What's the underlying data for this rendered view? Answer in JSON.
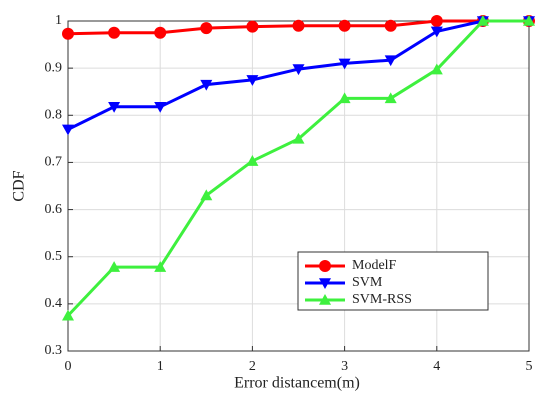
{
  "chart_data": {
    "type": "line",
    "xlabel": "Error distancem(m)",
    "ylabel": "CDF",
    "x": [
      0,
      0.5,
      1,
      1.5,
      2,
      2.5,
      3,
      3.5,
      4,
      4.5,
      5
    ],
    "series": [
      {
        "name": "ModelF",
        "color": "#ff0000",
        "marker": "circle",
        "values": [
          0.973,
          0.975,
          0.975,
          0.985,
          0.988,
          0.99,
          0.99,
          0.99,
          1,
          1,
          1
        ]
      },
      {
        "name": "SVM",
        "color": "#0000ff",
        "marker": "triangle-down",
        "values": [
          0.77,
          0.818,
          0.818,
          0.865,
          0.875,
          0.898,
          0.91,
          0.917,
          0.978,
          1,
          1
        ]
      },
      {
        "name": "SVM-RSS",
        "color": "#3ef03e",
        "marker": "triangle-up",
        "values": [
          0.375,
          0.478,
          0.478,
          0.63,
          0.703,
          0.75,
          0.836,
          0.836,
          0.897,
          1,
          1
        ]
      }
    ],
    "xlim": [
      0,
      5
    ],
    "xticks": [
      0,
      1,
      2,
      3,
      4,
      5
    ],
    "ylim": [
      0.3,
      1
    ],
    "yticks": [
      0.3,
      0.4,
      0.5,
      0.6,
      0.7,
      0.8,
      0.9,
      1
    ],
    "grid": true,
    "legend": "lower right"
  }
}
